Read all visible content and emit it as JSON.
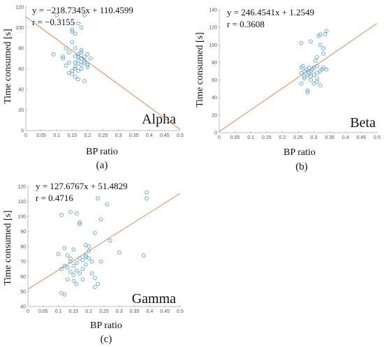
{
  "chart_data": [
    {
      "type": "scatter",
      "panel_caption": "(a)",
      "band_label": "Alpha",
      "equation": "y = −218.7345x + 110.4599",
      "r_text": "r = −0.3155",
      "xlabel": "BP ratio",
      "ylabel": "Time consumed [s]",
      "xlim": [
        0,
        0.5
      ],
      "ylim": [
        0,
        120
      ],
      "xticks": [
        "0",
        "0.05",
        "0.1",
        "0.15",
        "0.2",
        "0.25",
        "0.3",
        "0.35",
        "0.4",
        "0.45",
        "0.5"
      ],
      "yticks": [
        "0",
        "20",
        "40",
        "60",
        "80",
        "100",
        "120"
      ],
      "fit": {
        "slope": -218.7345,
        "intercept": 110.4599
      },
      "points": [
        [
          0.09,
          74
        ],
        [
          0.1,
          112
        ],
        [
          0.12,
          70
        ],
        [
          0.12,
          72
        ],
        [
          0.13,
          80
        ],
        [
          0.13,
          63
        ],
        [
          0.14,
          76
        ],
        [
          0.14,
          66
        ],
        [
          0.14,
          56
        ],
        [
          0.15,
          58
        ],
        [
          0.15,
          55
        ],
        [
          0.15,
          86
        ],
        [
          0.15,
          96
        ],
        [
          0.15,
          98
        ],
        [
          0.16,
          72
        ],
        [
          0.16,
          66
        ],
        [
          0.16,
          60
        ],
        [
          0.16,
          62
        ],
        [
          0.16,
          52
        ],
        [
          0.16,
          80
        ],
        [
          0.16,
          94
        ],
        [
          0.17,
          72
        ],
        [
          0.17,
          74
        ],
        [
          0.17,
          68
        ],
        [
          0.17,
          65
        ],
        [
          0.17,
          58
        ],
        [
          0.17,
          50
        ],
        [
          0.17,
          104
        ],
        [
          0.18,
          70
        ],
        [
          0.18,
          64
        ],
        [
          0.18,
          60
        ],
        [
          0.18,
          76
        ],
        [
          0.18,
          78
        ],
        [
          0.18,
          100
        ],
        [
          0.19,
          72
        ],
        [
          0.19,
          68
        ],
        [
          0.19,
          66
        ],
        [
          0.19,
          48
        ],
        [
          0.19,
          112
        ],
        [
          0.2,
          64
        ],
        [
          0.2,
          62
        ],
        [
          0.2,
          74
        ],
        [
          0.21,
          70
        ]
      ]
    },
    {
      "type": "scatter",
      "panel_caption": "(b)",
      "band_label": "Beta",
      "equation": "y = 246.4541x + 1.2549",
      "r_text": "r = 0.3608",
      "xlabel": "BP ratio",
      "ylabel": "Time consumed [s]",
      "xlim": [
        0,
        0.5
      ],
      "ylim": [
        0,
        140
      ],
      "xticks": [
        "0",
        "0.05",
        "0.1",
        "0.15",
        "0.2",
        "0.25",
        "0.3",
        "0.35",
        "0.4",
        "0.45",
        "0.5"
      ],
      "yticks": [
        "0",
        "20",
        "40",
        "60",
        "80",
        "100",
        "120",
        "140"
      ],
      "fit": {
        "slope": 246.4541,
        "intercept": 1.2549
      },
      "points": [
        [
          0.26,
          74
        ],
        [
          0.26,
          68
        ],
        [
          0.26,
          102
        ],
        [
          0.26,
          56
        ],
        [
          0.265,
          76
        ],
        [
          0.27,
          70
        ],
        [
          0.27,
          64
        ],
        [
          0.27,
          62
        ],
        [
          0.275,
          72
        ],
        [
          0.28,
          66
        ],
        [
          0.28,
          48
        ],
        [
          0.28,
          46
        ],
        [
          0.285,
          74
        ],
        [
          0.285,
          68
        ],
        [
          0.29,
          104
        ],
        [
          0.29,
          70
        ],
        [
          0.29,
          64
        ],
        [
          0.29,
          60
        ],
        [
          0.295,
          72
        ],
        [
          0.3,
          74
        ],
        [
          0.3,
          66
        ],
        [
          0.3,
          56
        ],
        [
          0.305,
          82
        ],
        [
          0.31,
          68
        ],
        [
          0.31,
          76
        ],
        [
          0.31,
          62
        ],
        [
          0.31,
          58
        ],
        [
          0.31,
          86
        ],
        [
          0.315,
          110
        ],
        [
          0.32,
          112
        ],
        [
          0.32,
          70
        ],
        [
          0.32,
          100
        ],
        [
          0.32,
          54
        ],
        [
          0.325,
          72
        ],
        [
          0.33,
          96
        ],
        [
          0.33,
          90
        ],
        [
          0.33,
          74
        ],
        [
          0.335,
          112
        ],
        [
          0.34,
          116
        ],
        [
          0.34,
          72
        ]
      ]
    },
    {
      "type": "scatter",
      "panel_caption": "(c)",
      "band_label": "Gamma",
      "equation": "y = 127.6767x + 51.4829",
      "r_text": "r = 0.4716",
      "xlabel": "BP ratio",
      "ylabel": "Time consumed [s]",
      "xlim": [
        0,
        0.5
      ],
      "ylim": [
        40,
        120
      ],
      "xticks": [
        "0",
        "0.05",
        "0.1",
        "0.15",
        "0.2",
        "0.25",
        "0.3",
        "0.35",
        "0.4",
        "0.45",
        "0.5"
      ],
      "yticks": [
        "40",
        "50",
        "60",
        "70",
        "80",
        "90",
        "100",
        "110",
        "120"
      ],
      "fit": {
        "slope": 127.6767,
        "intercept": 51.4829
      },
      "points": [
        [
          0.1,
          75
        ],
        [
          0.11,
          101
        ],
        [
          0.11,
          65
        ],
        [
          0.11,
          49
        ],
        [
          0.12,
          48
        ],
        [
          0.12,
          79
        ],
        [
          0.12,
          67
        ],
        [
          0.13,
          74
        ],
        [
          0.13,
          66
        ],
        [
          0.13,
          58
        ],
        [
          0.14,
          103
        ],
        [
          0.14,
          72
        ],
        [
          0.14,
          70
        ],
        [
          0.14,
          63
        ],
        [
          0.15,
          78
        ],
        [
          0.15,
          67
        ],
        [
          0.15,
          61
        ],
        [
          0.15,
          57
        ],
        [
          0.16,
          102
        ],
        [
          0.16,
          69
        ],
        [
          0.16,
          64
        ],
        [
          0.16,
          55
        ],
        [
          0.17,
          95
        ],
        [
          0.17,
          96
        ],
        [
          0.17,
          72
        ],
        [
          0.17,
          62
        ],
        [
          0.18,
          71
        ],
        [
          0.18,
          65
        ],
        [
          0.18,
          58
        ],
        [
          0.19,
          81
        ],
        [
          0.19,
          74
        ],
        [
          0.19,
          73
        ],
        [
          0.19,
          68
        ],
        [
          0.2,
          80
        ],
        [
          0.2,
          77
        ],
        [
          0.2,
          72
        ],
        [
          0.21,
          70
        ],
        [
          0.21,
          62
        ],
        [
          0.22,
          59
        ],
        [
          0.22,
          53
        ],
        [
          0.22,
          89
        ],
        [
          0.23,
          55
        ],
        [
          0.23,
          112
        ],
        [
          0.24,
          70
        ],
        [
          0.24,
          98
        ],
        [
          0.26,
          108
        ],
        [
          0.27,
          84
        ],
        [
          0.3,
          76
        ],
        [
          0.38,
          74
        ],
        [
          0.39,
          112
        ],
        [
          0.39,
          116
        ]
      ]
    }
  ]
}
